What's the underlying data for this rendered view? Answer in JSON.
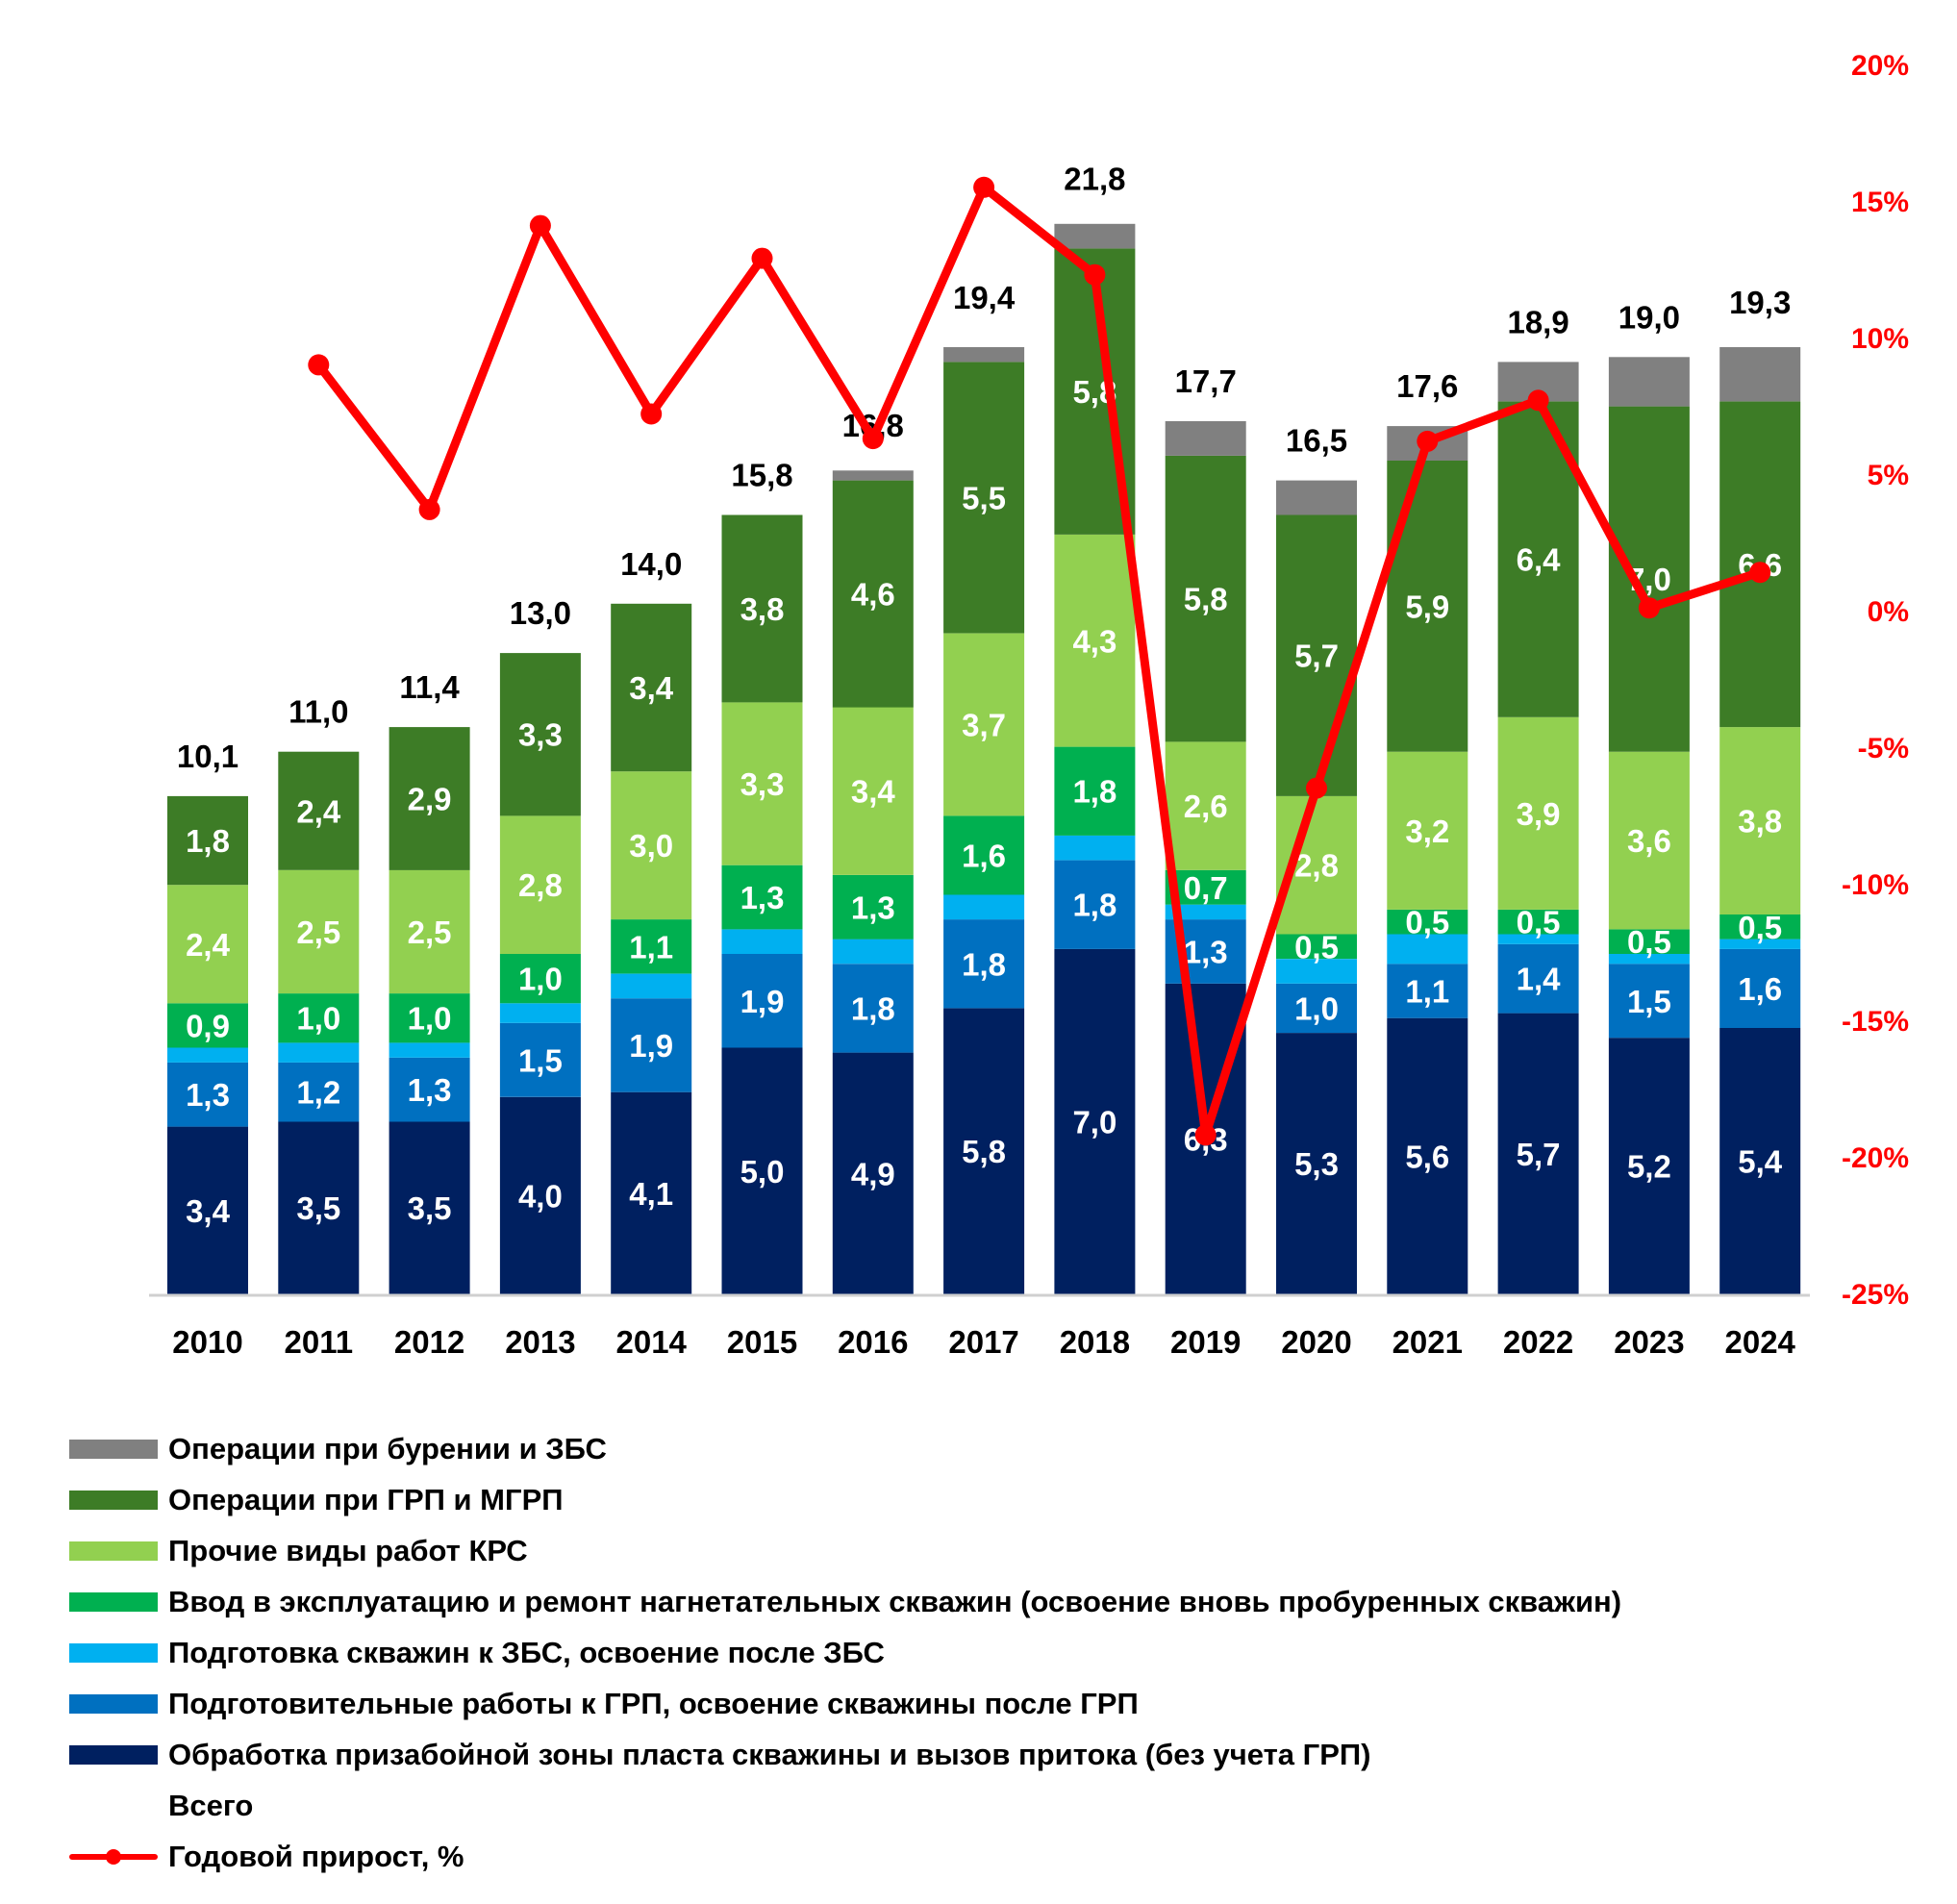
{
  "chart_data": {
    "type": "bar",
    "subtype": "stacked-bar-with-line-secondary-axis",
    "title": "",
    "xlabel": "",
    "ylabel": "",
    "categories": [
      "2010",
      "2011",
      "2012",
      "2013",
      "2014",
      "2015",
      "2016",
      "2017",
      "2018",
      "2019",
      "2020",
      "2021",
      "2022",
      "2023",
      "2024"
    ],
    "series": [
      {
        "name": "Обработка призабойной зоны пласта скважины и вызов притока (без учета ГРП)",
        "color": "#002060",
        "labeled": true,
        "values": [
          3.4,
          3.5,
          3.5,
          4.0,
          4.1,
          5.0,
          4.9,
          5.8,
          7.0,
          6.3,
          5.3,
          5.6,
          5.7,
          5.2,
          5.4
        ]
      },
      {
        "name": "Подготовительные работы к ГРП, освоение скважины после ГРП",
        "color": "#0070c0",
        "labeled": true,
        "values": [
          1.3,
          1.2,
          1.3,
          1.5,
          1.9,
          1.9,
          1.8,
          1.8,
          1.8,
          1.3,
          1.0,
          1.1,
          1.4,
          1.5,
          1.6
        ]
      },
      {
        "name": "Подготовка скважин к ЗБС, освоение после ЗБС",
        "color": "#00b0f0",
        "labeled": false,
        "values": [
          0.3,
          0.4,
          0.3,
          0.4,
          0.5,
          0.5,
          0.5,
          0.5,
          0.5,
          0.3,
          0.5,
          0.6,
          0.2,
          0.2,
          0.2
        ]
      },
      {
        "name": "Ввод в эксплуатацию и ремонт нагнетательных скважин (освоение вновь пробуренных скважин)",
        "color": "#00b050",
        "labeled": true,
        "values": [
          0.9,
          1.0,
          1.0,
          1.0,
          1.1,
          1.3,
          1.3,
          1.6,
          1.8,
          0.7,
          0.5,
          0.5,
          0.5,
          0.5,
          0.5
        ]
      },
      {
        "name": "Прочие виды работ КРС",
        "color": "#92d050",
        "labeled": true,
        "values": [
          2.4,
          2.5,
          2.5,
          2.8,
          3.0,
          3.3,
          3.4,
          3.7,
          4.3,
          2.6,
          2.8,
          3.2,
          3.9,
          3.6,
          3.8
        ]
      },
      {
        "name": "Операции при ГРП и МГРП",
        "color": "#3d7c26",
        "labeled": true,
        "values": [
          1.8,
          2.4,
          2.9,
          3.3,
          3.4,
          3.8,
          4.6,
          5.5,
          5.8,
          5.8,
          5.7,
          5.9,
          6.4,
          7.0,
          6.6
        ]
      },
      {
        "name": "Операции при бурении и ЗБС",
        "color": "#808080",
        "labeled": false,
        "values": [
          0.0,
          0.0,
          0.0,
          0.0,
          0.0,
          0.0,
          0.2,
          0.3,
          0.5,
          0.7,
          0.7,
          0.7,
          0.8,
          1.0,
          1.1
        ]
      }
    ],
    "totals": {
      "name": "Всего",
      "values": [
        10.1,
        11.0,
        11.4,
        13.0,
        14.0,
        15.8,
        16.8,
        19.4,
        21.8,
        17.7,
        16.5,
        17.6,
        18.9,
        19.0,
        19.3
      ],
      "labels": [
        "10,1",
        "11,0",
        "11,4",
        "13,0",
        "14,0",
        "15,8",
        "16,8",
        "19,4",
        "21,8",
        "17,7",
        "16,5",
        "17,6",
        "18,9",
        "19,0",
        "19,3"
      ]
    },
    "line_series": {
      "name": "Годовой прирост, %",
      "color": "#ff0000",
      "axis": "secondary",
      "values": [
        null,
        9.0,
        3.7,
        14.1,
        7.2,
        12.9,
        6.3,
        15.5,
        12.3,
        -19.2,
        -6.5,
        6.2,
        7.7,
        0.1,
        1.4
      ]
    },
    "y_primary": {
      "ylim": [
        0,
        22
      ],
      "visible": false
    },
    "y_secondary": {
      "ylim": [
        -25,
        20
      ],
      "ticks": [
        20,
        15,
        10,
        5,
        0,
        -5,
        -10,
        -15,
        -20,
        -25
      ],
      "tick_labels": [
        "20%",
        "15%",
        "10%",
        "5%",
        "0%",
        "-5%",
        "-10%",
        "-15%",
        "-20%",
        "-25%"
      ],
      "color": "#ff0000"
    },
    "grid": false,
    "legend_position": "bottom-left",
    "legend_order": [
      6,
      5,
      4,
      3,
      2,
      1,
      0,
      "totals",
      "line"
    ]
  }
}
